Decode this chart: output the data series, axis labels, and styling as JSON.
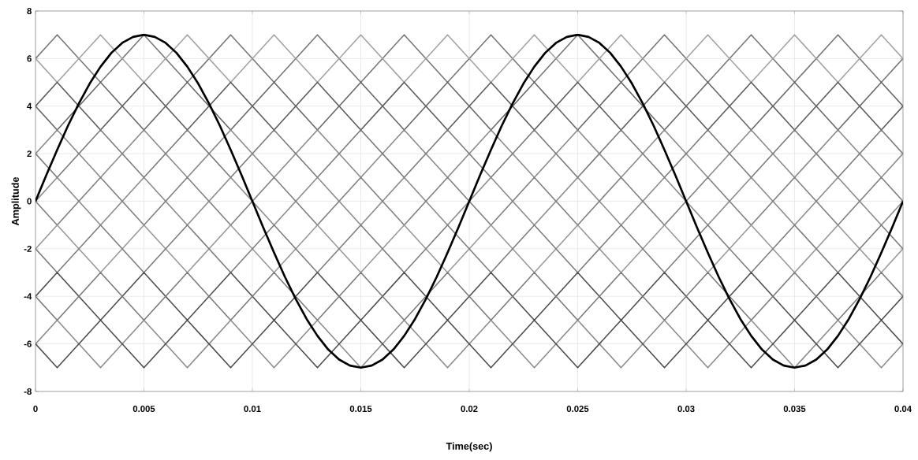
{
  "chart_data": {
    "type": "line",
    "xlabel": "Time(sec)",
    "ylabel": "Amplitude",
    "xlim": [
      0,
      0.04
    ],
    "ylim": [
      -8,
      8
    ],
    "xticks": [
      0,
      0.005,
      0.01,
      0.015,
      0.02,
      0.025,
      0.03,
      0.035,
      0.04
    ],
    "yticks": [
      -8,
      -6,
      -4,
      -2,
      0,
      2,
      4,
      6,
      8
    ],
    "grid": true,
    "marker": "none",
    "line_style": "solid",
    "series": [
      {
        "color": "#777777",
        "x": [
          0,
          0.001,
          0.003,
          0.005,
          0.007,
          0.009,
          0.011,
          0.013,
          0.015,
          0.017,
          0.019,
          0.021,
          0.023,
          0.025,
          0.027,
          0.029,
          0.031,
          0.033,
          0.035,
          0.037,
          0.039,
          0.04
        ],
        "values": [
          6,
          7,
          5,
          7,
          5,
          7,
          5,
          7,
          5,
          7,
          5,
          7,
          5,
          7,
          5,
          7,
          5,
          7,
          5,
          7,
          5,
          6
        ]
      },
      {
        "color": "#a3a3a3",
        "x": [
          0,
          0.001,
          0.003,
          0.005,
          0.007,
          0.009,
          0.011,
          0.013,
          0.015,
          0.017,
          0.019,
          0.021,
          0.023,
          0.025,
          0.027,
          0.029,
          0.031,
          0.033,
          0.035,
          0.037,
          0.039,
          0.04
        ],
        "values": [
          6,
          5,
          7,
          5,
          7,
          5,
          7,
          5,
          7,
          5,
          7,
          5,
          7,
          5,
          7,
          5,
          7,
          5,
          7,
          5,
          7,
          6
        ]
      },
      {
        "color": "#5a5a5a",
        "x": [
          0,
          0.001,
          0.003,
          0.005,
          0.007,
          0.009,
          0.011,
          0.013,
          0.015,
          0.017,
          0.019,
          0.021,
          0.023,
          0.025,
          0.027,
          0.029,
          0.031,
          0.033,
          0.035,
          0.037,
          0.039,
          0.04
        ],
        "values": [
          4,
          5,
          3,
          5,
          3,
          5,
          3,
          5,
          3,
          5,
          3,
          5,
          3,
          5,
          3,
          5,
          3,
          5,
          3,
          5,
          3,
          4
        ]
      },
      {
        "color": "#666666",
        "x": [
          0,
          0.001,
          0.003,
          0.005,
          0.007,
          0.009,
          0.011,
          0.013,
          0.015,
          0.017,
          0.019,
          0.021,
          0.023,
          0.025,
          0.027,
          0.029,
          0.031,
          0.033,
          0.035,
          0.037,
          0.039,
          0.04
        ],
        "values": [
          4,
          3,
          5,
          3,
          5,
          3,
          5,
          3,
          5,
          3,
          5,
          3,
          5,
          3,
          5,
          3,
          5,
          3,
          5,
          3,
          5,
          4
        ]
      },
      {
        "color": "#8a8a8a",
        "x": [
          0,
          0.001,
          0.003,
          0.005,
          0.007,
          0.009,
          0.011,
          0.013,
          0.015,
          0.017,
          0.019,
          0.021,
          0.023,
          0.025,
          0.027,
          0.029,
          0.031,
          0.033,
          0.035,
          0.037,
          0.039,
          0.04
        ],
        "values": [
          2,
          3,
          1,
          3,
          1,
          3,
          1,
          3,
          1,
          3,
          1,
          3,
          1,
          3,
          1,
          3,
          1,
          3,
          1,
          3,
          1,
          2
        ]
      },
      {
        "color": "#7a7a7a",
        "x": [
          0,
          0.001,
          0.003,
          0.005,
          0.007,
          0.009,
          0.011,
          0.013,
          0.015,
          0.017,
          0.019,
          0.021,
          0.023,
          0.025,
          0.027,
          0.029,
          0.031,
          0.033,
          0.035,
          0.037,
          0.039,
          0.04
        ],
        "values": [
          2,
          1,
          3,
          1,
          3,
          1,
          3,
          1,
          3,
          1,
          3,
          1,
          3,
          1,
          3,
          1,
          3,
          1,
          3,
          1,
          3,
          2
        ]
      },
      {
        "color": "#8c8c8c",
        "x": [
          0,
          0.001,
          0.003,
          0.005,
          0.007,
          0.009,
          0.011,
          0.013,
          0.015,
          0.017,
          0.019,
          0.021,
          0.023,
          0.025,
          0.027,
          0.029,
          0.031,
          0.033,
          0.035,
          0.037,
          0.039,
          0.04
        ],
        "values": [
          0,
          1,
          -1,
          1,
          -1,
          1,
          -1,
          1,
          -1,
          1,
          -1,
          1,
          -1,
          1,
          -1,
          1,
          -1,
          1,
          -1,
          1,
          -1,
          0
        ]
      },
      {
        "color": "#808080",
        "x": [
          0,
          0.001,
          0.003,
          0.005,
          0.007,
          0.009,
          0.011,
          0.013,
          0.015,
          0.017,
          0.019,
          0.021,
          0.023,
          0.025,
          0.027,
          0.029,
          0.031,
          0.033,
          0.035,
          0.037,
          0.039,
          0.04
        ],
        "values": [
          0,
          -1,
          1,
          -1,
          1,
          -1,
          1,
          -1,
          1,
          -1,
          1,
          -1,
          1,
          -1,
          1,
          -1,
          1,
          -1,
          1,
          -1,
          1,
          0
        ]
      },
      {
        "color": "#999999",
        "x": [
          0,
          0.001,
          0.003,
          0.005,
          0.007,
          0.009,
          0.011,
          0.013,
          0.015,
          0.017,
          0.019,
          0.021,
          0.023,
          0.025,
          0.027,
          0.029,
          0.031,
          0.033,
          0.035,
          0.037,
          0.039,
          0.04
        ],
        "values": [
          -2,
          -1,
          -3,
          -1,
          -3,
          -1,
          -3,
          -1,
          -3,
          -1,
          -3,
          -1,
          -3,
          -1,
          -3,
          -1,
          -3,
          -1,
          -3,
          -1,
          -3,
          -2
        ]
      },
      {
        "color": "#7d7d7d",
        "x": [
          0,
          0.001,
          0.003,
          0.005,
          0.007,
          0.009,
          0.011,
          0.013,
          0.015,
          0.017,
          0.019,
          0.021,
          0.023,
          0.025,
          0.027,
          0.029,
          0.031,
          0.033,
          0.035,
          0.037,
          0.039,
          0.04
        ],
        "values": [
          -2,
          -3,
          -1,
          -3,
          -1,
          -3,
          -1,
          -3,
          -1,
          -3,
          -1,
          -3,
          -1,
          -3,
          -1,
          -3,
          -1,
          -3,
          -1,
          -3,
          -1,
          -2
        ]
      },
      {
        "color": "#4d4d4d",
        "x": [
          0,
          0.001,
          0.003,
          0.005,
          0.007,
          0.009,
          0.011,
          0.013,
          0.015,
          0.017,
          0.019,
          0.021,
          0.023,
          0.025,
          0.027,
          0.029,
          0.031,
          0.033,
          0.035,
          0.037,
          0.039,
          0.04
        ],
        "values": [
          -4,
          -3,
          -5,
          -3,
          -5,
          -3,
          -5,
          -3,
          -5,
          -3,
          -5,
          -3,
          -5,
          -3,
          -5,
          -3,
          -5,
          -3,
          -5,
          -3,
          -5,
          -4
        ]
      },
      {
        "color": "#7a7a7a",
        "x": [
          0,
          0.001,
          0.003,
          0.005,
          0.007,
          0.009,
          0.011,
          0.013,
          0.015,
          0.017,
          0.019,
          0.021,
          0.023,
          0.025,
          0.027,
          0.029,
          0.031,
          0.033,
          0.035,
          0.037,
          0.039,
          0.04
        ],
        "values": [
          -4,
          -5,
          -3,
          -5,
          -3,
          -5,
          -3,
          -5,
          -3,
          -5,
          -3,
          -5,
          -3,
          -5,
          -3,
          -5,
          -3,
          -5,
          -3,
          -5,
          -3,
          -4
        ]
      },
      {
        "color": "#8c8c8c",
        "x": [
          0,
          0.001,
          0.003,
          0.005,
          0.007,
          0.009,
          0.011,
          0.013,
          0.015,
          0.017,
          0.019,
          0.021,
          0.023,
          0.025,
          0.027,
          0.029,
          0.031,
          0.033,
          0.035,
          0.037,
          0.039,
          0.04
        ],
        "values": [
          -6,
          -5,
          -7,
          -5,
          -7,
          -5,
          -7,
          -5,
          -7,
          -5,
          -7,
          -5,
          -7,
          -5,
          -7,
          -5,
          -7,
          -5,
          -7,
          -5,
          -7,
          -6
        ]
      },
      {
        "color": "#4d4d4d",
        "x": [
          0,
          0.001,
          0.003,
          0.005,
          0.007,
          0.009,
          0.011,
          0.013,
          0.015,
          0.017,
          0.019,
          0.021,
          0.023,
          0.025,
          0.027,
          0.029,
          0.031,
          0.033,
          0.035,
          0.037,
          0.039,
          0.04
        ],
        "values": [
          -6,
          -7,
          -5,
          -7,
          -5,
          -7,
          -5,
          -7,
          -5,
          -7,
          -5,
          -7,
          -5,
          -7,
          -5,
          -7,
          -5,
          -7,
          -5,
          -7,
          -5,
          -6
        ]
      },
      {
        "color": "#000000",
        "x": [
          0,
          0.0005,
          0.001,
          0.0015,
          0.002,
          0.0025,
          0.003,
          0.0035,
          0.004,
          0.0045,
          0.005,
          0.0055,
          0.006,
          0.0065,
          0.007,
          0.0075,
          0.008,
          0.0085,
          0.009,
          0.0095,
          0.01,
          0.0105,
          0.011,
          0.0115,
          0.012,
          0.0125,
          0.013,
          0.0135,
          0.014,
          0.0145,
          0.015,
          0.0155,
          0.016,
          0.0165,
          0.017,
          0.0175,
          0.018,
          0.0185,
          0.019,
          0.0195,
          0.02,
          0.0205,
          0.021,
          0.0215,
          0.022,
          0.0225,
          0.023,
          0.0235,
          0.024,
          0.0245,
          0.025,
          0.0255,
          0.026,
          0.0265,
          0.027,
          0.0275,
          0.028,
          0.0285,
          0.029,
          0.0295,
          0.03,
          0.0305,
          0.031,
          0.0315,
          0.032,
          0.0325,
          0.033,
          0.0335,
          0.034,
          0.0345,
          0.035,
          0.0355,
          0.036,
          0.0365,
          0.037,
          0.0375,
          0.038,
          0.0385,
          0.039,
          0.0395,
          0.04
        ],
        "values": [
          0,
          1.1,
          2.16,
          3.18,
          4.11,
          4.95,
          5.66,
          6.24,
          6.66,
          6.91,
          7,
          6.91,
          6.66,
          6.24,
          5.66,
          4.95,
          4.11,
          3.18,
          2.16,
          1.1,
          0,
          -1.1,
          -2.16,
          -3.18,
          -4.11,
          -4.95,
          -5.66,
          -6.24,
          -6.66,
          -6.91,
          -7,
          -6.91,
          -6.66,
          -6.24,
          -5.66,
          -4.95,
          -4.11,
          -3.18,
          -2.16,
          -1.1,
          0,
          1.1,
          2.16,
          3.18,
          4.11,
          4.95,
          5.66,
          6.24,
          6.66,
          6.91,
          7,
          6.91,
          6.66,
          6.24,
          5.66,
          4.95,
          4.11,
          3.18,
          2.16,
          1.1,
          0,
          -1.1,
          -2.16,
          -3.18,
          -4.11,
          -4.95,
          -5.66,
          -6.24,
          -6.66,
          -6.91,
          -7,
          -6.91,
          -6.66,
          -6.24,
          -5.66,
          -4.95,
          -4.11,
          -3.18,
          -2.16,
          -1.1,
          0
        ]
      }
    ]
  }
}
